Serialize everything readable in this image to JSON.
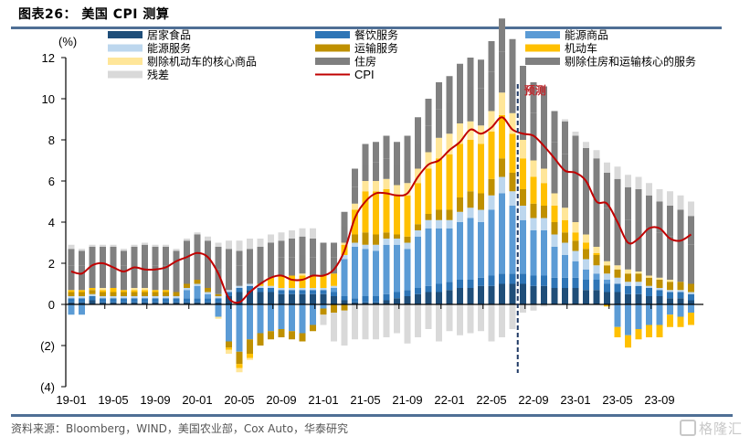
{
  "header": {
    "title": "图表26： 美国 CPI 测算"
  },
  "footer": {
    "source": "资料来源：Bloomberg，WIND，美国农业部，Cox Auto，华泰研究",
    "watermark": "格隆汇"
  },
  "chart_data": {
    "type": "bar",
    "subtype": "stacked-bar-with-line",
    "title": "美国 CPI 测算",
    "ylabel": "(%)",
    "xlabel": "",
    "ylim": [
      -4,
      12
    ],
    "yticks": [
      12,
      10,
      8,
      6,
      4,
      2,
      0,
      -2,
      -4
    ],
    "ytick_labels": [
      "12",
      "10",
      "8",
      "6",
      "4",
      "2",
      "0",
      "(2)",
      "(4)"
    ],
    "xtick_labels": [
      "19-01",
      "19-05",
      "19-09",
      "20-01",
      "20-05",
      "20-09",
      "21-01",
      "21-05",
      "21-09",
      "22-01",
      "22-05",
      "22-09",
      "23-01",
      "23-05",
      "23-09"
    ],
    "xtick_every": 4,
    "grid": false,
    "legend_position": "top",
    "forecast_label": "预测",
    "forecast_start": "22-08",
    "categories": [
      "19-01",
      "19-02",
      "19-03",
      "19-04",
      "19-05",
      "19-06",
      "19-07",
      "19-08",
      "19-09",
      "19-10",
      "19-11",
      "19-12",
      "20-01",
      "20-02",
      "20-03",
      "20-04",
      "20-05",
      "20-06",
      "20-07",
      "20-08",
      "20-09",
      "20-10",
      "20-11",
      "20-12",
      "21-01",
      "21-02",
      "21-03",
      "21-04",
      "21-05",
      "21-06",
      "21-07",
      "21-08",
      "21-09",
      "21-10",
      "21-11",
      "21-12",
      "22-01",
      "22-02",
      "22-03",
      "22-04",
      "22-05",
      "22-06",
      "22-07",
      "22-08",
      "22-09",
      "22-10",
      "22-11",
      "22-12",
      "23-01",
      "23-02",
      "23-03",
      "23-04",
      "23-05",
      "23-06",
      "23-07",
      "23-08",
      "23-09",
      "23-10",
      "23-11",
      "23-12"
    ],
    "series": [
      {
        "name": "居家食品",
        "color": "#1f4e79",
        "values": [
          0.1,
          0.1,
          0.2,
          0.1,
          0.1,
          0.1,
          0.1,
          0.1,
          0.1,
          0.1,
          0.1,
          0.1,
          0.1,
          0.1,
          0.1,
          0.4,
          0.6,
          0.7,
          0.6,
          0.6,
          0.5,
          0.5,
          0.5,
          0.5,
          0.5,
          0.4,
          0.2,
          0.1,
          0.1,
          0.1,
          0.2,
          0.3,
          0.4,
          0.5,
          0.6,
          0.6,
          0.7,
          0.8,
          0.8,
          0.9,
          0.9,
          1.0,
          1.0,
          1.0,
          0.9,
          0.9,
          0.8,
          0.8,
          0.8,
          0.7,
          0.7,
          0.6,
          0.6,
          0.5,
          0.5,
          0.4,
          0.4,
          0.3,
          0.3,
          0.2
        ]
      },
      {
        "name": "餐饮服务",
        "color": "#2e75b6",
        "values": [
          0.2,
          0.2,
          0.2,
          0.2,
          0.2,
          0.2,
          0.2,
          0.2,
          0.2,
          0.2,
          0.2,
          0.2,
          0.2,
          0.2,
          0.2,
          0.2,
          0.2,
          0.2,
          0.2,
          0.2,
          0.2,
          0.2,
          0.2,
          0.2,
          0.2,
          0.2,
          0.2,
          0.2,
          0.3,
          0.3,
          0.3,
          0.3,
          0.3,
          0.3,
          0.3,
          0.4,
          0.4,
          0.4,
          0.4,
          0.4,
          0.5,
          0.5,
          0.5,
          0.5,
          0.5,
          0.5,
          0.5,
          0.5,
          0.5,
          0.5,
          0.5,
          0.4,
          0.4,
          0.4,
          0.4,
          0.4,
          0.3,
          0.3,
          0.3,
          0.3
        ]
      },
      {
        "name": "能源商品",
        "color": "#5b9bd5",
        "values": [
          -0.5,
          -0.5,
          0,
          0,
          0,
          0,
          0,
          0,
          0,
          0,
          0,
          0.4,
          0.6,
          0.2,
          -0.6,
          -1.8,
          -2.3,
          -1.7,
          -1.4,
          -1.3,
          -1.2,
          -1.3,
          -1.4,
          -1.0,
          -0.2,
          0.2,
          1.8,
          2.5,
          2.3,
          2.2,
          2.4,
          2.3,
          2.0,
          2.5,
          2.8,
          2.7,
          2.6,
          2.8,
          3.0,
          2.7,
          3.2,
          3.9,
          3.3,
          2.6,
          2.2,
          2.2,
          1.5,
          1.1,
          0.8,
          0.5,
          0.3,
          0.2,
          -1.1,
          -1.5,
          -1.2,
          -1.0,
          -1.0,
          -0.5,
          -0.6,
          -0.4
        ]
      },
      {
        "name": "能源服务",
        "color": "#bdd7ee",
        "values": [
          0.1,
          0.1,
          0.1,
          0.1,
          0.1,
          0.1,
          0.1,
          0.1,
          0.1,
          0.1,
          0.1,
          0.1,
          0.1,
          0.1,
          0.1,
          0.1,
          0.1,
          0.1,
          0.1,
          0.1,
          0.1,
          0.1,
          0.1,
          0.1,
          0.1,
          0.1,
          0.2,
          0.2,
          0.2,
          0.3,
          0.3,
          0.3,
          0.3,
          0.3,
          0.4,
          0.4,
          0.4,
          0.5,
          0.5,
          0.6,
          0.7,
          0.8,
          0.7,
          0.7,
          0.6,
          0.6,
          0.6,
          0.6,
          0.5,
          0.5,
          0.4,
          0.3,
          0.3,
          0.2,
          0.2,
          0.1,
          0.1,
          0.1,
          0.1,
          0.1
        ]
      },
      {
        "name": "运输服务",
        "color": "#bf9000",
        "values": [
          0.2,
          0.2,
          0.2,
          0.2,
          0.2,
          0.2,
          0.2,
          0.2,
          0.2,
          0.2,
          0.2,
          0.2,
          0.2,
          0.2,
          0.1,
          -0.3,
          -0.6,
          -0.7,
          -0.6,
          -0.4,
          -0.4,
          -0.4,
          -0.4,
          -0.3,
          -0.3,
          -0.4,
          -0.3,
          0.4,
          0.6,
          0.5,
          0.3,
          0.2,
          0.3,
          0.3,
          0.3,
          0.5,
          0.5,
          0.7,
          0.8,
          0.8,
          0.8,
          0.9,
          0.9,
          0.8,
          0.7,
          0.6,
          0.6,
          0.5,
          0.5,
          0.5,
          0.5,
          0.4,
          0.4,
          0.4,
          0.4,
          0.4,
          0.4,
          0.4,
          0.4,
          0.4
        ]
      },
      {
        "name": "机动车",
        "color": "#ffc000",
        "values": [
          0.1,
          0.1,
          0.1,
          0.1,
          0.2,
          0.1,
          0.1,
          0.1,
          0.1,
          0.1,
          0.0,
          0.0,
          0.0,
          0.0,
          0.0,
          -0.1,
          -0.2,
          -0.2,
          0.1,
          0.4,
          0.6,
          0.6,
          0.6,
          0.6,
          0.6,
          0.6,
          0.5,
          1.2,
          2.0,
          2.1,
          2.1,
          1.9,
          2.0,
          2.0,
          2.2,
          2.5,
          2.7,
          2.6,
          2.5,
          2.4,
          2.3,
          2.1,
          1.9,
          1.5,
          1.3,
          1.1,
          0.8,
          0.6,
          0.4,
          0.3,
          0.1,
          -0.1,
          -0.5,
          -0.6,
          -0.5,
          -0.6,
          -0.6,
          -0.6,
          -0.5,
          -0.6
        ]
      },
      {
        "name": "剔除机动车的核心商品",
        "color": "#ffe699",
        "values": [
          0.0,
          0.0,
          0.0,
          0.1,
          0.0,
          0.0,
          0.1,
          0.1,
          0.0,
          0.0,
          0.0,
          0.0,
          0.0,
          0.0,
          -0.1,
          -0.2,
          -0.2,
          -0.1,
          0.0,
          0.0,
          0.0,
          0.0,
          0.1,
          0.0,
          0.0,
          0.0,
          0.1,
          0.3,
          0.5,
          0.5,
          0.5,
          0.5,
          0.6,
          0.7,
          0.8,
          1.0,
          1.0,
          1.0,
          0.9,
          0.9,
          1.0,
          1.1,
          1.0,
          0.9,
          0.8,
          0.7,
          0.6,
          0.6,
          0.5,
          0.4,
          0.3,
          0.2,
          0.2,
          0.2,
          0.1,
          0.1,
          0.1,
          0.1,
          0.0,
          0.0
        ]
      },
      {
        "name": "住房",
        "color": "#7f7f7f",
        "values": [
          1.2,
          1.2,
          1.2,
          1.2,
          1.2,
          1.2,
          1.2,
          1.2,
          1.2,
          1.2,
          1.2,
          1.2,
          1.2,
          1.2,
          1.2,
          1.1,
          1.0,
          1.0,
          1.0,
          0.9,
          0.9,
          0.9,
          0.9,
          0.9,
          0.8,
          0.8,
          0.8,
          0.8,
          0.8,
          0.9,
          1.0,
          1.0,
          1.1,
          1.2,
          1.3,
          1.4,
          1.5,
          1.6,
          1.7,
          1.8,
          1.9,
          2.0,
          2.1,
          2.2,
          2.3,
          2.4,
          2.5,
          2.6,
          2.6,
          2.6,
          2.6,
          2.6,
          2.5,
          2.4,
          2.4,
          2.3,
          2.2,
          2.1,
          2.0,
          1.9
        ]
      },
      {
        "name": "剔除住房和运输核心的服务",
        "color": "#808080",
        "values": [
          0.8,
          0.7,
          0.8,
          0.8,
          0.8,
          0.7,
          0.8,
          0.9,
          0.9,
          0.9,
          0.8,
          0.9,
          1.0,
          1.1,
          1.1,
          0.9,
          0.7,
          0.7,
          0.8,
          0.8,
          0.8,
          0.9,
          0.9,
          0.9,
          0.8,
          0.7,
          0.7,
          0.9,
          1.0,
          1.0,
          1.1,
          1.1,
          1.2,
          1.3,
          1.3,
          1.3,
          1.3,
          1.3,
          1.4,
          1.4,
          1.5,
          1.6,
          1.5,
          1.4,
          1.5,
          1.6,
          1.5,
          1.6,
          1.6,
          1.6,
          1.7,
          1.7,
          1.7,
          1.6,
          1.6,
          1.6,
          1.5,
          1.5,
          1.5,
          1.4
        ]
      },
      {
        "name": "残差",
        "color": "#d9d9d9",
        "values": [
          0.2,
          0.1,
          0.1,
          0.1,
          0.1,
          0.1,
          0.1,
          0.1,
          0.1,
          0.1,
          0.1,
          0.1,
          0.1,
          0.2,
          0.2,
          0.4,
          0.5,
          0.5,
          0.4,
          0.4,
          0.4,
          0.4,
          0.4,
          0.5,
          -0.5,
          -1.4,
          -1.7,
          -1.7,
          -1.7,
          -1.7,
          -1.6,
          -1.4,
          -1.9,
          -1.6,
          -1.2,
          -1.8,
          -1.3,
          -1.5,
          -1.4,
          -1.3,
          -1.8,
          -1.6,
          -1.2,
          -0.4,
          -0.3,
          -0.1,
          0.0,
          0.1,
          0.2,
          0.3,
          0.4,
          0.5,
          0.6,
          0.6,
          0.6,
          0.6,
          0.6,
          0.7,
          0.7,
          0.7
        ]
      },
      {
        "name": "CPI",
        "color": "#c00000",
        "type": "line",
        "values": [
          1.6,
          1.5,
          1.9,
          2.0,
          1.8,
          1.6,
          1.8,
          1.7,
          1.7,
          1.8,
          2.1,
          2.3,
          2.5,
          2.3,
          1.5,
          0.3,
          0.1,
          0.6,
          1.0,
          1.3,
          1.4,
          1.2,
          1.2,
          1.4,
          1.4,
          1.7,
          2.6,
          4.2,
          5.0,
          5.4,
          5.4,
          5.3,
          5.4,
          6.2,
          6.8,
          7.0,
          7.5,
          7.9,
          8.5,
          8.3,
          8.6,
          9.1,
          8.5,
          8.3,
          8.2,
          7.7,
          7.1,
          6.5,
          6.4,
          6.0,
          5.0,
          4.9,
          4.0,
          3.0,
          3.2,
          3.7,
          3.7,
          3.2,
          3.1,
          3.4
        ]
      }
    ]
  }
}
